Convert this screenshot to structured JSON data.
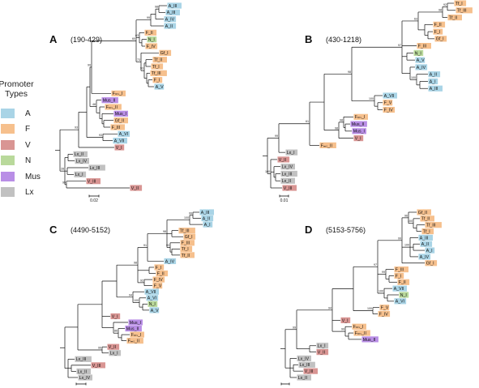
{
  "legend": {
    "title_line1": "Promoter",
    "title_line2": "Types",
    "items": [
      {
        "label": "A",
        "color": "#a9d4e6"
      },
      {
        "label": "F",
        "color": "#f6c08d"
      },
      {
        "label": "V",
        "color": "#d99593"
      },
      {
        "label": "N",
        "color": "#b9d99b"
      },
      {
        "label": "Mus",
        "color": "#b98ee6"
      },
      {
        "label": "Lx",
        "color": "#c1c1c1"
      }
    ]
  },
  "panels": [
    {
      "letter": "A",
      "range": "(190-429)",
      "scale_label": "0.02",
      "tips": [
        {
          "label": "A_III",
          "type": "A"
        },
        {
          "label": "A_III",
          "type": "A"
        },
        {
          "label": "A_IV",
          "type": "A"
        },
        {
          "label": "A_II",
          "type": "A"
        },
        {
          "label": "F_II",
          "type": "F"
        },
        {
          "label": "N_I",
          "type": "N"
        },
        {
          "label": "F_IV",
          "type": "F"
        },
        {
          "label": "Gf_I",
          "type": "F"
        },
        {
          "label": "Tf_II",
          "type": "F"
        },
        {
          "label": "Tf_I",
          "type": "F"
        },
        {
          "label": "Tf_III",
          "type": "F"
        },
        {
          "label": "F_I",
          "type": "F"
        },
        {
          "label": "A_V",
          "type": "A"
        },
        {
          "label": "Fₘₛ_I",
          "type": "F"
        },
        {
          "label": "Mus_II",
          "type": "Mus"
        },
        {
          "label": "Fₘₛ_II",
          "type": "F"
        },
        {
          "label": "Mus_I",
          "type": "Mus"
        },
        {
          "label": "Gf_II",
          "type": "F"
        },
        {
          "label": "F_III",
          "type": "F"
        },
        {
          "label": "A_VI",
          "type": "A"
        },
        {
          "label": "A_VII",
          "type": "A"
        },
        {
          "label": "V_I",
          "type": "V"
        },
        {
          "label": "Lx_II",
          "type": "Lx"
        },
        {
          "label": "Lx_IV",
          "type": "Lx"
        },
        {
          "label": "Lx_III",
          "type": "Lx"
        },
        {
          "label": "Lx_I",
          "type": "Lx"
        },
        {
          "label": "V_III",
          "type": "V"
        },
        {
          "label": "V_II",
          "type": "V"
        }
      ],
      "bootstrap": [
        "98",
        "99",
        "63",
        "93",
        "73",
        "60",
        "99",
        "48",
        "93",
        "93",
        "99",
        "28"
      ]
    },
    {
      "letter": "B",
      "range": "(430-1218)",
      "scale_label": "0.01",
      "tips": [
        {
          "label": "Tf_I",
          "type": "F"
        },
        {
          "label": "Tf_III",
          "type": "F"
        },
        {
          "label": "Tf_II",
          "type": "F"
        },
        {
          "label": "F_II",
          "type": "F"
        },
        {
          "label": "F_I",
          "type": "F"
        },
        {
          "label": "Gf_I",
          "type": "F"
        },
        {
          "label": "F_III",
          "type": "F"
        },
        {
          "label": "N_I",
          "type": "N"
        },
        {
          "label": "A_V",
          "type": "A"
        },
        {
          "label": "A_IV",
          "type": "A"
        },
        {
          "label": "A_II",
          "type": "A"
        },
        {
          "label": "A_I",
          "type": "A"
        },
        {
          "label": "A_III",
          "type": "A"
        },
        {
          "label": "A_VII",
          "type": "A"
        },
        {
          "label": "F_V",
          "type": "F"
        },
        {
          "label": "F_IV",
          "type": "F"
        },
        {
          "label": "Fₘₛ_I",
          "type": "F"
        },
        {
          "label": "Mus_II",
          "type": "Mus"
        },
        {
          "label": "Mus_I",
          "type": "Mus"
        },
        {
          "label": "V_I",
          "type": "V"
        },
        {
          "label": "Fₘₛ_II",
          "type": "F"
        },
        {
          "label": "Lx_I",
          "type": "Lx"
        },
        {
          "label": "V_II",
          "type": "V"
        },
        {
          "label": "Lx_IV",
          "type": "Lx"
        },
        {
          "label": "Lx_III",
          "type": "Lx"
        },
        {
          "label": "Lx_II",
          "type": "Lx"
        },
        {
          "label": "V_III",
          "type": "V"
        }
      ],
      "bootstrap": [
        "92",
        "98",
        "63",
        "100",
        "97",
        "100",
        "98",
        "98",
        "98",
        "61",
        "99",
        "100"
      ]
    },
    {
      "letter": "C",
      "range": "(4490-5152)",
      "scale_label": "",
      "tips": [
        {
          "label": "A_III",
          "type": "A"
        },
        {
          "label": "A_II",
          "type": "A"
        },
        {
          "label": "A_I",
          "type": "A"
        },
        {
          "label": "Tf_III",
          "type": "F"
        },
        {
          "label": "Gf_I",
          "type": "F"
        },
        {
          "label": "F_III",
          "type": "F"
        },
        {
          "label": "Tf_I",
          "type": "F"
        },
        {
          "label": "Tf_II",
          "type": "F"
        },
        {
          "label": "A_IV",
          "type": "A"
        },
        {
          "label": "F_I",
          "type": "F"
        },
        {
          "label": "F_II",
          "type": "F"
        },
        {
          "label": "F_IV",
          "type": "F"
        },
        {
          "label": "F_V",
          "type": "F"
        },
        {
          "label": "A_VII",
          "type": "A"
        },
        {
          "label": "A_VI",
          "type": "A"
        },
        {
          "label": "N_I",
          "type": "N"
        },
        {
          "label": "A_V",
          "type": "A"
        },
        {
          "label": "V_I",
          "type": "V"
        },
        {
          "label": "Mus_I",
          "type": "Mus"
        },
        {
          "label": "Mus_II",
          "type": "Mus"
        },
        {
          "label": "Fₘₛ_I",
          "type": "F"
        },
        {
          "label": "Fₘₛ_II",
          "type": "F"
        },
        {
          "label": "V_II",
          "type": "V"
        },
        {
          "label": "Lx_I",
          "type": "Lx"
        },
        {
          "label": "Lx_III",
          "type": "Lx"
        },
        {
          "label": "V_III",
          "type": "V"
        },
        {
          "label": "Lx_II",
          "type": "Lx"
        },
        {
          "label": "Lx_IV",
          "type": "Lx"
        }
      ],
      "bootstrap": [
        "99",
        "100",
        "93",
        "98",
        "91",
        "92",
        "98",
        "100",
        "94",
        "86",
        "99"
      ]
    },
    {
      "letter": "D",
      "range": "(5153-5756)",
      "scale_label": "",
      "tips": [
        {
          "label": "Gf_II",
          "type": "F"
        },
        {
          "label": "Tf_II",
          "type": "F"
        },
        {
          "label": "Tf_III",
          "type": "F"
        },
        {
          "label": "Tf_I",
          "type": "F"
        },
        {
          "label": "A_III",
          "type": "A"
        },
        {
          "label": "A_II",
          "type": "A"
        },
        {
          "label": "A_I",
          "type": "A"
        },
        {
          "label": "A_IV",
          "type": "A"
        },
        {
          "label": "Gf_I",
          "type": "F"
        },
        {
          "label": "F_III",
          "type": "F"
        },
        {
          "label": "F_I",
          "type": "F"
        },
        {
          "label": "F_II",
          "type": "F"
        },
        {
          "label": "A_VII",
          "type": "A"
        },
        {
          "label": "N_I",
          "type": "N"
        },
        {
          "label": "A_VI",
          "type": "A"
        },
        {
          "label": "F_V",
          "type": "F"
        },
        {
          "label": "F_IV",
          "type": "F"
        },
        {
          "label": "V_I",
          "type": "V"
        },
        {
          "label": "Fₘₛ_I",
          "type": "F"
        },
        {
          "label": "Fₘₛ_II",
          "type": "F"
        },
        {
          "label": "Mus_II",
          "type": "Mus"
        },
        {
          "label": "Lx_I",
          "type": "Lx"
        },
        {
          "label": "V_II",
          "type": "V"
        },
        {
          "label": "Lx_IV",
          "type": "Lx"
        },
        {
          "label": "Lx_III",
          "type": "Lx"
        },
        {
          "label": "V_III",
          "type": "V"
        },
        {
          "label": "Lx_II",
          "type": "Lx"
        }
      ],
      "bootstrap": [
        "100",
        "96",
        "100",
        "99",
        "99",
        "100",
        "97",
        "100",
        "99",
        "94",
        "99"
      ]
    }
  ]
}
